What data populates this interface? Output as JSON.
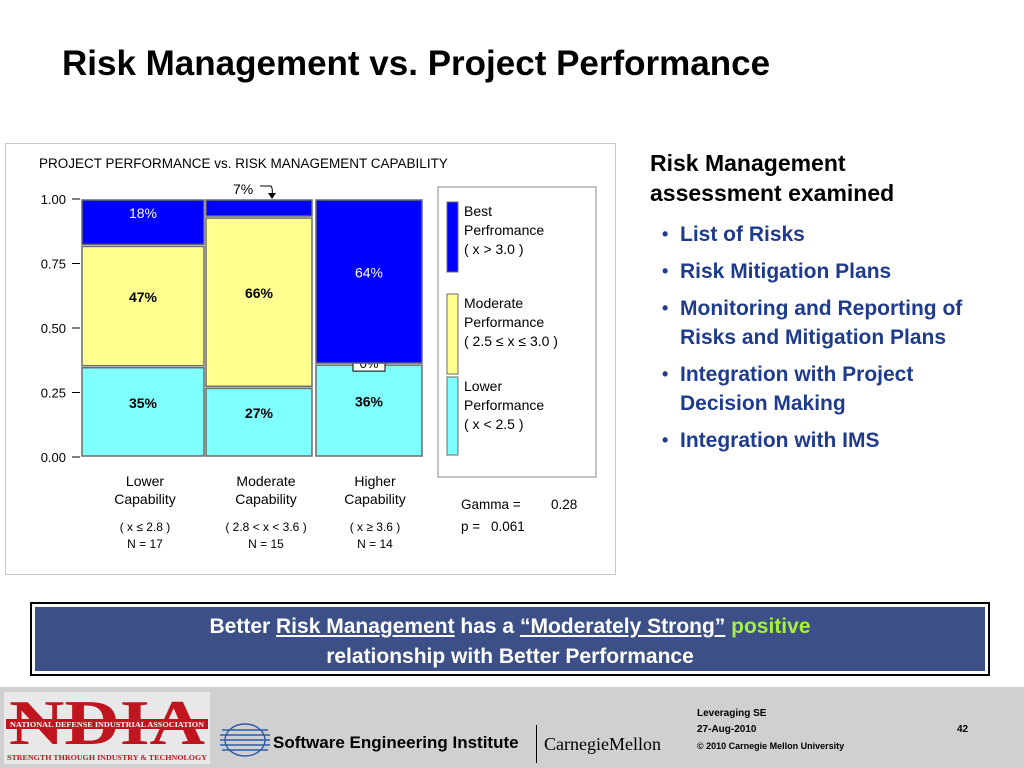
{
  "slide": {
    "title": "Risk Management vs. Project Performance"
  },
  "chart_data": {
    "type": "bar",
    "stacked": true,
    "title": "PROJECT PERFORMANCE vs.  RISK MANAGEMENT CAPABILITY",
    "ylim": [
      0,
      1
    ],
    "yticks": [
      "1.00",
      "0.75",
      "0.50",
      "0.25",
      "0.00"
    ],
    "categories": [
      "Lower Capability",
      "Moderate Capability",
      "Higher Capability"
    ],
    "category_lines": [
      {
        "name": [
          "Lower",
          "Capability"
        ],
        "range": "( x ≤ 2.8 )",
        "n": "N = 17"
      },
      {
        "name": [
          "Moderate",
          "Capability"
        ],
        "range": "( 2.8 < x < 3.6 )",
        "n": "N = 15"
      },
      {
        "name": [
          "Higher",
          "Capability"
        ],
        "range": "( x ≥  3.6 )",
        "n": "N = 14"
      }
    ],
    "series": [
      {
        "name": "Lower Performance",
        "color": "#80ffff",
        "values": [
          0.35,
          0.27,
          0.36
        ],
        "labels": [
          "35%",
          "27%",
          "36%"
        ]
      },
      {
        "name": "Moderate Performance",
        "color": "#ffff90",
        "values": [
          0.47,
          0.66,
          0.0
        ],
        "labels": [
          "47%",
          "66%",
          "0%"
        ]
      },
      {
        "name": "Best Perfromance",
        "color": "#0000ff",
        "values": [
          0.18,
          0.07,
          0.64
        ],
        "labels": [
          "18%",
          "7%",
          "64%"
        ]
      }
    ],
    "legend": [
      {
        "lines": [
          "Best",
          "Perfromance",
          "( x > 3.0 )"
        ],
        "color": "#0000ff"
      },
      {
        "lines": [
          "Moderate",
          "Performance",
          "( 2.5 ≤ x ≤ 3.0 )"
        ],
        "color": "#ffff90"
      },
      {
        "lines": [
          "Lower",
          "Performance",
          "( x < 2.5 )"
        ],
        "color": "#80ffff"
      }
    ],
    "stats": {
      "gamma_label": "Gamma =",
      "gamma_value": "0.28",
      "p_label": "p =",
      "p_value": "0.061"
    }
  },
  "panel": {
    "heading_line1": "Risk Management",
    "heading_line2": "assessment examined",
    "bullets": [
      "List of Risks",
      "Risk Mitigation Plans",
      "Monitoring and Reporting of Risks and Mitigation Plans",
      "Integration with Project Decision Making",
      "Integration with IMS"
    ]
  },
  "callout": {
    "part1": "Better ",
    "part2": "Risk Management",
    "part3": " has a ",
    "part4": "“Moderately Strong”",
    "part5": " positive",
    "line2": "relationship with Better Performance"
  },
  "footer": {
    "ndia_text": "NDIA",
    "ndia_top": "NATIONAL DEFENSE INDUSTRIAL ASSOCIATION",
    "ndia_bottom": "STRENGTH THROUGH INDUSTRY & TECHNOLOGY",
    "sei": "Software Engineering Institute",
    "cmu": "CarnegieMellon",
    "line1": "Leveraging SE",
    "date": "27-Aug-2010",
    "copyright": "© 2010 Carnegie Mellon University",
    "page": "42"
  },
  "colors": {
    "bullet_text": "#1f3c8c",
    "callout_bg": "#3c4f87",
    "positive": "#a6f23a",
    "ndia_red": "#c0141e"
  }
}
